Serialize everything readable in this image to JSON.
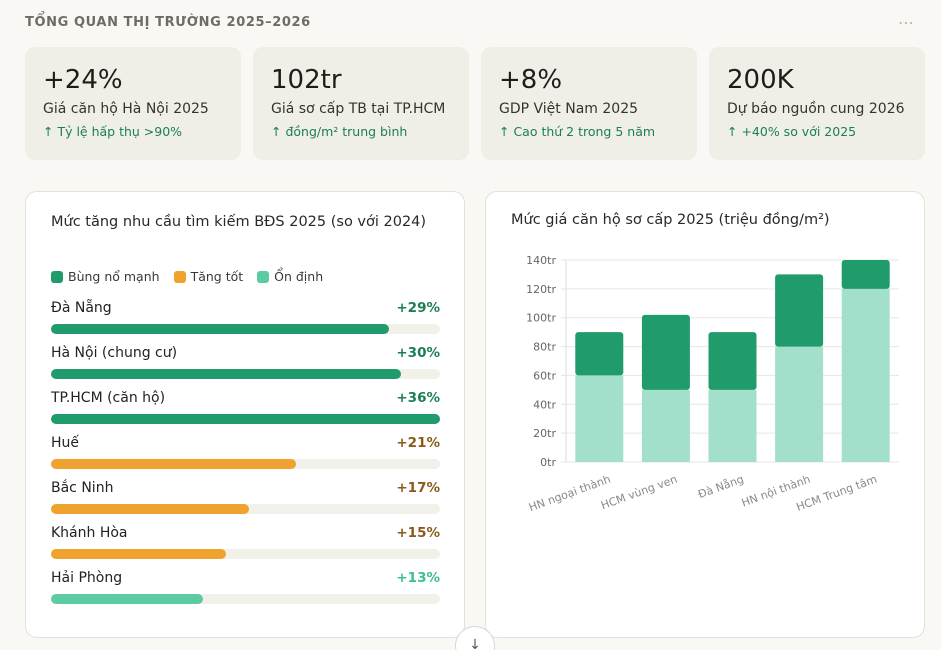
{
  "header": {
    "title": "TỔNG QUAN THỊ TRƯỜNG 2025–2026",
    "more_icon": "more-horizontal-icon",
    "more_glyph": "⋯"
  },
  "kpis": [
    {
      "value": "+24%",
      "label": "Giá căn hộ Hà Nội 2025",
      "sub": "↑ Tỷ lệ hấp thụ >90%"
    },
    {
      "value": "102tr",
      "label": "Giá sơ cấp TB tại TP.HCM",
      "sub": "↑ đồng/m² trung bình"
    },
    {
      "value": "+8%",
      "label": "GDP Việt Nam 2025",
      "sub": "↑ Cao thứ 2 trong 5 năm"
    },
    {
      "value": "200K",
      "label": "Dự báo nguồn cung 2026",
      "sub": "↑ +40% so với 2025"
    }
  ],
  "demand": {
    "title": "Mức tăng nhu cầu tìm kiếm BĐS 2025 (so với 2024)",
    "legend": [
      {
        "label": "Bùng nổ mạnh",
        "color": "#1f9b6c"
      },
      {
        "label": "Tăng tốt",
        "color": "#efa22d"
      },
      {
        "label": "Ổn định",
        "color": "#5dcba1"
      }
    ],
    "rows": [
      {
        "name": "Đà Nẵng",
        "pct": "+29%",
        "fill": 0.87,
        "level": 0
      },
      {
        "name": "Hà Nội (chung cư)",
        "pct": "+30%",
        "fill": 0.9,
        "level": 0
      },
      {
        "name": "TP.HCM (căn hộ)",
        "pct": "+36%",
        "fill": 1.0,
        "level": 0
      },
      {
        "name": "Huế",
        "pct": "+21%",
        "fill": 0.63,
        "level": 1
      },
      {
        "name": "Bắc Ninh",
        "pct": "+17%",
        "fill": 0.51,
        "level": 1
      },
      {
        "name": "Khánh Hòa",
        "pct": "+15%",
        "fill": 0.45,
        "level": 1
      },
      {
        "name": "Hải Phòng",
        "pct": "+13%",
        "fill": 0.39,
        "level": 2
      }
    ],
    "pct_colors": [
      "#1b7f55",
      "#8a5a1a",
      "#3bbf8e"
    ]
  },
  "chart_data": {
    "type": "bar",
    "stacked": true,
    "title": "Mức giá căn hộ sơ cấp 2025 (triệu đồng/m²)",
    "categories": [
      "HN ngoại thành",
      "HCM vùng ven",
      "Đà Nẵng",
      "HN nội thành",
      "HCM Trung tâm"
    ],
    "series": [
      {
        "values": [
          60,
          50,
          50,
          80,
          120
        ],
        "color": "#a2e0cb"
      },
      {
        "values": [
          30,
          52,
          40,
          50,
          20
        ],
        "color": "#1f9b6c"
      }
    ],
    "ylim": [
      0,
      140
    ],
    "yticks": [
      "0tr",
      "20tr",
      "40tr",
      "60tr",
      "80tr",
      "100tr",
      "120tr",
      "140tr"
    ],
    "grid": true
  },
  "scroll": {
    "icon": "arrow-down-icon",
    "glyph": "↓"
  }
}
